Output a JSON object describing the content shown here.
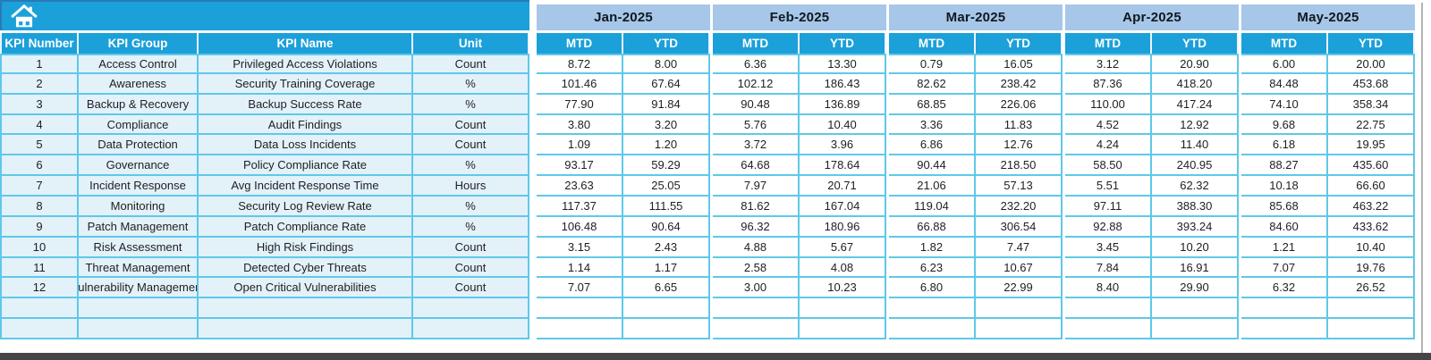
{
  "table": {
    "left_headers": [
      "KPI Number",
      "KPI Group",
      "KPI Name",
      "Unit"
    ],
    "months": [
      "Jan-2025",
      "Feb-2025",
      "Mar-2025",
      "Apr-2025",
      "May-2025"
    ],
    "sub_headers": [
      "MTD",
      "YTD"
    ],
    "rows": [
      {
        "number": "1",
        "group": "Access Control",
        "name": "Privileged Access Violations",
        "unit": "Count",
        "values": [
          "8.72",
          "8.00",
          "6.36",
          "13.30",
          "0.79",
          "16.05",
          "3.12",
          "20.90",
          "6.00",
          "20.00"
        ]
      },
      {
        "number": "2",
        "group": "Awareness",
        "name": "Security Training Coverage",
        "unit": "%",
        "values": [
          "101.46",
          "67.64",
          "102.12",
          "186.43",
          "82.62",
          "238.42",
          "87.36",
          "418.20",
          "84.48",
          "453.68"
        ]
      },
      {
        "number": "3",
        "group": "Backup & Recovery",
        "name": "Backup Success Rate",
        "unit": "%",
        "values": [
          "77.90",
          "91.84",
          "90.48",
          "136.89",
          "68.85",
          "226.06",
          "110.00",
          "417.24",
          "74.10",
          "358.34"
        ]
      },
      {
        "number": "4",
        "group": "Compliance",
        "name": "Audit Findings",
        "unit": "Count",
        "values": [
          "3.80",
          "3.20",
          "5.76",
          "10.40",
          "3.36",
          "11.83",
          "4.52",
          "12.92",
          "9.68",
          "22.75"
        ]
      },
      {
        "number": "5",
        "group": "Data Protection",
        "name": "Data Loss Incidents",
        "unit": "Count",
        "values": [
          "1.09",
          "1.20",
          "3.72",
          "3.96",
          "6.86",
          "12.76",
          "4.24",
          "11.40",
          "6.18",
          "19.95"
        ]
      },
      {
        "number": "6",
        "group": "Governance",
        "name": "Policy Compliance Rate",
        "unit": "%",
        "values": [
          "93.17",
          "59.29",
          "64.68",
          "178.64",
          "90.44",
          "218.50",
          "58.50",
          "240.95",
          "88.27",
          "435.60"
        ]
      },
      {
        "number": "7",
        "group": "Incident Response",
        "name": "Avg Incident Response Time",
        "unit": "Hours",
        "values": [
          "23.63",
          "25.05",
          "7.97",
          "20.71",
          "21.06",
          "57.13",
          "5.51",
          "62.32",
          "10.18",
          "66.60"
        ]
      },
      {
        "number": "8",
        "group": "Monitoring",
        "name": "Security Log Review Rate",
        "unit": "%",
        "values": [
          "117.37",
          "111.55",
          "81.62",
          "167.04",
          "119.04",
          "232.20",
          "97.11",
          "388.30",
          "85.68",
          "463.22"
        ]
      },
      {
        "number": "9",
        "group": "Patch Management",
        "name": "Patch Compliance Rate",
        "unit": "%",
        "values": [
          "106.48",
          "90.64",
          "96.32",
          "180.96",
          "66.88",
          "306.54",
          "92.88",
          "393.24",
          "84.60",
          "433.62"
        ]
      },
      {
        "number": "10",
        "group": "Risk Assessment",
        "name": "High Risk Findings",
        "unit": "Count",
        "values": [
          "3.15",
          "2.43",
          "4.88",
          "5.67",
          "1.82",
          "7.47",
          "3.45",
          "10.20",
          "1.21",
          "10.40"
        ]
      },
      {
        "number": "11",
        "group": "Threat Management",
        "name": "Detected Cyber Threats",
        "unit": "Count",
        "values": [
          "1.14",
          "1.17",
          "2.58",
          "4.08",
          "6.23",
          "10.67",
          "7.84",
          "16.91",
          "7.07",
          "19.76"
        ]
      },
      {
        "number": "12",
        "group": "Vulnerability Management",
        "name": "Open Critical Vulnerabilities",
        "unit": "Count",
        "values": [
          "7.07",
          "6.65",
          "3.00",
          "10.23",
          "6.80",
          "22.99",
          "8.40",
          "29.90",
          "6.32",
          "26.52"
        ]
      }
    ],
    "empty_row_count": 2
  },
  "icons": {
    "home": "home-icon"
  },
  "colors": {
    "header_teal": "#1BA0D9",
    "month_band_blue": "#A6C7E8",
    "left_cell_bg": "#E3F1F9",
    "grid_border": "#5FC8E9",
    "bottom_bar": "#454545"
  }
}
